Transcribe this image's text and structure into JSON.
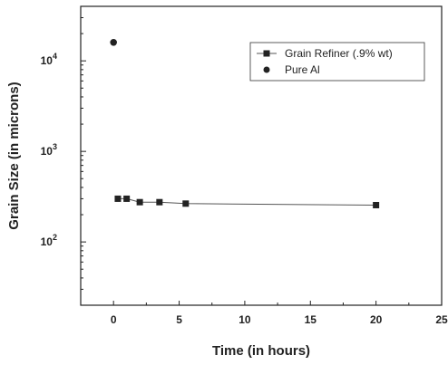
{
  "chart_data": {
    "type": "scatter",
    "title": "",
    "xlabel": "Time (in hours)",
    "ylabel": "Grain Size (in microns)",
    "xlim": [
      -2.5,
      25
    ],
    "ylim": [
      20,
      40000
    ],
    "yscale": "log",
    "grid": false,
    "legend_position": "top-right",
    "x_ticks": [
      {
        "value": 0,
        "label": "0"
      },
      {
        "value": 5,
        "label": "5"
      },
      {
        "value": 10,
        "label": "10"
      },
      {
        "value": 15,
        "label": "15"
      },
      {
        "value": 20,
        "label": "20"
      },
      {
        "value": 25,
        "label": "25"
      }
    ],
    "y_ticks": [
      {
        "value": 100,
        "base": "10",
        "exp": "2"
      },
      {
        "value": 1000,
        "base": "10",
        "exp": "3"
      },
      {
        "value": 10000,
        "base": "10",
        "exp": "4"
      }
    ],
    "series": [
      {
        "name": "Grain Refiner (.9% wt)",
        "marker": "square",
        "line": true,
        "color": "#222222",
        "x": [
          0.33,
          1,
          2,
          3.5,
          5.5,
          20
        ],
        "y": [
          300,
          300,
          275,
          275,
          265,
          255
        ]
      },
      {
        "name": "Pure Al",
        "marker": "circle",
        "line": false,
        "color": "#222222",
        "x": [
          0
        ],
        "y": [
          16000
        ]
      }
    ]
  }
}
